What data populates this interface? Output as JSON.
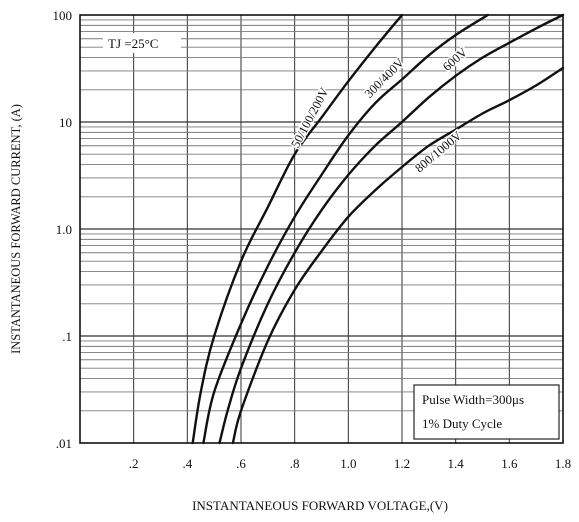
{
  "chart_data": {
    "type": "line",
    "xlabel": "INSTANTANEOUS FORWARD VOLTAGE,(V)",
    "ylabel": "INSTANTANEOUS FORWARD CURRENT, (A)",
    "xscale": "linear",
    "yscale": "log",
    "xlim": [
      0,
      1.8
    ],
    "ylim": [
      0.01,
      100
    ],
    "x_ticks": [
      0.2,
      0.4,
      0.6,
      0.8,
      1.0,
      1.2,
      1.4,
      1.6,
      1.8
    ],
    "x_tick_labels": [
      ".2",
      ".4",
      ".6",
      ".8",
      "1.0",
      "1.2",
      "1.4",
      "1.6",
      "1.8"
    ],
    "y_ticks": [
      0.01,
      0.1,
      1,
      10,
      100
    ],
    "y_tick_labels": [
      ".01",
      ".1",
      "1.0",
      "10",
      "100"
    ],
    "grid": "on",
    "annotations": {
      "condition": "TJ =25°C",
      "pulse_width": "Pulse Width=300μs",
      "duty_cycle": "1% Duty Cycle"
    },
    "series": [
      {
        "name": "50/100/200V",
        "points": [
          [
            0.42,
            0.01
          ],
          [
            0.45,
            0.03
          ],
          [
            0.5,
            0.1
          ],
          [
            0.6,
            0.5
          ],
          [
            0.7,
            1.6
          ],
          [
            0.8,
            5
          ],
          [
            0.9,
            11
          ],
          [
            1.0,
            24
          ],
          [
            1.1,
            50
          ],
          [
            1.2,
            100
          ]
        ]
      },
      {
        "name": "300/400V",
        "points": [
          [
            0.46,
            0.01
          ],
          [
            0.5,
            0.03
          ],
          [
            0.6,
            0.13
          ],
          [
            0.7,
            0.45
          ],
          [
            0.8,
            1.3
          ],
          [
            0.9,
            3.2
          ],
          [
            1.0,
            7.5
          ],
          [
            1.1,
            15
          ],
          [
            1.2,
            25
          ],
          [
            1.3,
            42
          ],
          [
            1.4,
            65
          ],
          [
            1.52,
            100
          ]
        ]
      },
      {
        "name": "600V",
        "points": [
          [
            0.52,
            0.01
          ],
          [
            0.55,
            0.02
          ],
          [
            0.6,
            0.05
          ],
          [
            0.7,
            0.2
          ],
          [
            0.8,
            0.6
          ],
          [
            0.9,
            1.5
          ],
          [
            1.0,
            3.2
          ],
          [
            1.1,
            6
          ],
          [
            1.2,
            10
          ],
          [
            1.3,
            17
          ],
          [
            1.4,
            27
          ],
          [
            1.5,
            40
          ],
          [
            1.6,
            55
          ],
          [
            1.7,
            75
          ],
          [
            1.8,
            100
          ]
        ]
      },
      {
        "name": "800/1000V",
        "points": [
          [
            0.57,
            0.01
          ],
          [
            0.6,
            0.02
          ],
          [
            0.7,
            0.09
          ],
          [
            0.8,
            0.27
          ],
          [
            0.9,
            0.62
          ],
          [
            1.0,
            1.3
          ],
          [
            1.1,
            2.3
          ],
          [
            1.2,
            3.8
          ],
          [
            1.3,
            6
          ],
          [
            1.4,
            8.5
          ],
          [
            1.5,
            12
          ],
          [
            1.6,
            16
          ],
          [
            1.7,
            22
          ],
          [
            1.8,
            32
          ]
        ]
      }
    ]
  }
}
